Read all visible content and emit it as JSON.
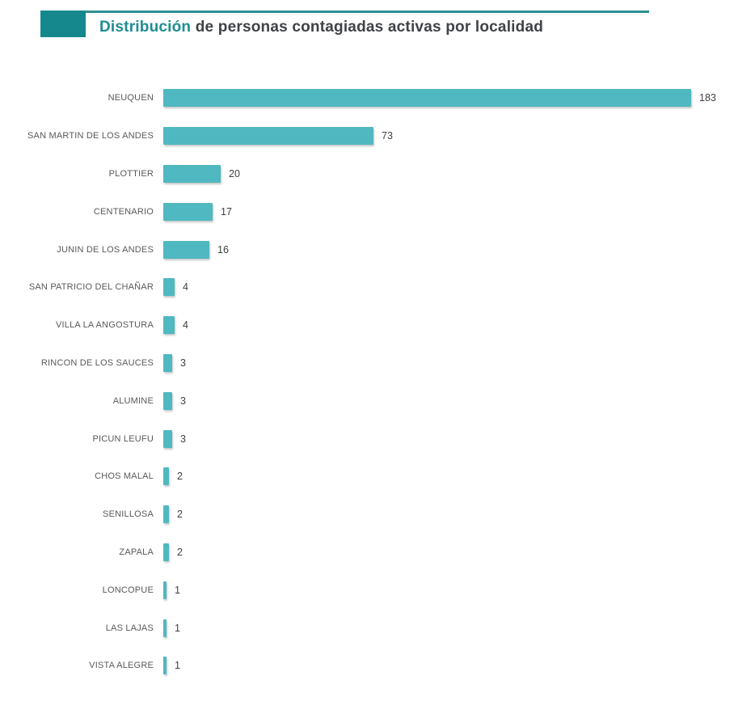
{
  "header": {
    "title_highlight": "Distribución",
    "title_rest": " de personas contagiadas activas por localidad"
  },
  "colors": {
    "accent_teal": "#14888d",
    "accent_line": "#2d8e93",
    "title_highlight": "#1d8d92",
    "title_rest": "#3f4247",
    "bar_fill": "#4fb8c0",
    "category_label": "#595959",
    "value_label": "#404040",
    "background": "#ffffff"
  },
  "chart_data": {
    "type": "bar",
    "orientation": "horizontal",
    "title": "Distribución de personas contagiadas activas por localidad",
    "xlabel": "",
    "ylabel": "",
    "categories": [
      "NEUQUEN",
      "SAN MARTIN DE LOS ANDES",
      "PLOTTIER",
      "CENTENARIO",
      "JUNIN DE LOS ANDES",
      "SAN PATRICIO DEL CHAÑAR",
      "VILLA LA ANGOSTURA",
      "RINCON DE LOS SAUCES",
      "ALUMINE",
      "PICUN LEUFU",
      "CHOS MALAL",
      "SENILLOSA",
      "ZAPALA",
      "LONCOPUE",
      "LAS LAJAS",
      "VISTA ALEGRE"
    ],
    "values": [
      183,
      73,
      20,
      17,
      16,
      4,
      4,
      3,
      3,
      3,
      2,
      2,
      2,
      1,
      1,
      1
    ],
    "value_labels_shown": true,
    "xlim": [
      0,
      190
    ],
    "grid": false,
    "legend": false,
    "axis_ticks_shown": false
  }
}
